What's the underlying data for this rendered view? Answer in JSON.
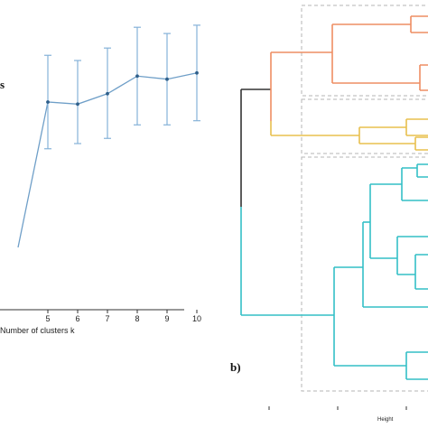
{
  "chart_data": [
    {
      "type": "line",
      "title_fragment": "s",
      "xlabel": "Number of clusters k",
      "x_tick_labels": [
        "5",
        "6",
        "7",
        "8",
        "9",
        "10"
      ],
      "points": [
        {
          "x": 4,
          "y": 0.6
        },
        {
          "x": 5,
          "y": 2.0,
          "err_low": 1.55,
          "err_high": 2.45
        },
        {
          "x": 6,
          "y": 1.98,
          "err_low": 1.6,
          "err_high": 2.4
        },
        {
          "x": 7,
          "y": 2.08,
          "err_low": 1.65,
          "err_high": 2.52
        },
        {
          "x": 8,
          "y": 2.25,
          "err_low": 1.78,
          "err_high": 2.72
        },
        {
          "x": 9,
          "y": 2.22,
          "err_low": 1.78,
          "err_high": 2.66
        },
        {
          "x": 10,
          "y": 2.28,
          "err_low": 1.82,
          "err_high": 2.74
        }
      ],
      "line_color": "#6f9fc8",
      "errorbar_color": "#86b2d8",
      "marker_color": "#2f5f8a"
    },
    {
      "type": "dendrogram",
      "panel_label": "b)",
      "xlabel": "Height",
      "clusters": [
        {
          "color": "#ee8e63",
          "leaves": 4
        },
        {
          "color": "#e8c04e",
          "leaves": 4
        },
        {
          "color": "#33bfc6",
          "leaves": 9
        }
      ],
      "root_color": "#333333"
    }
  ]
}
